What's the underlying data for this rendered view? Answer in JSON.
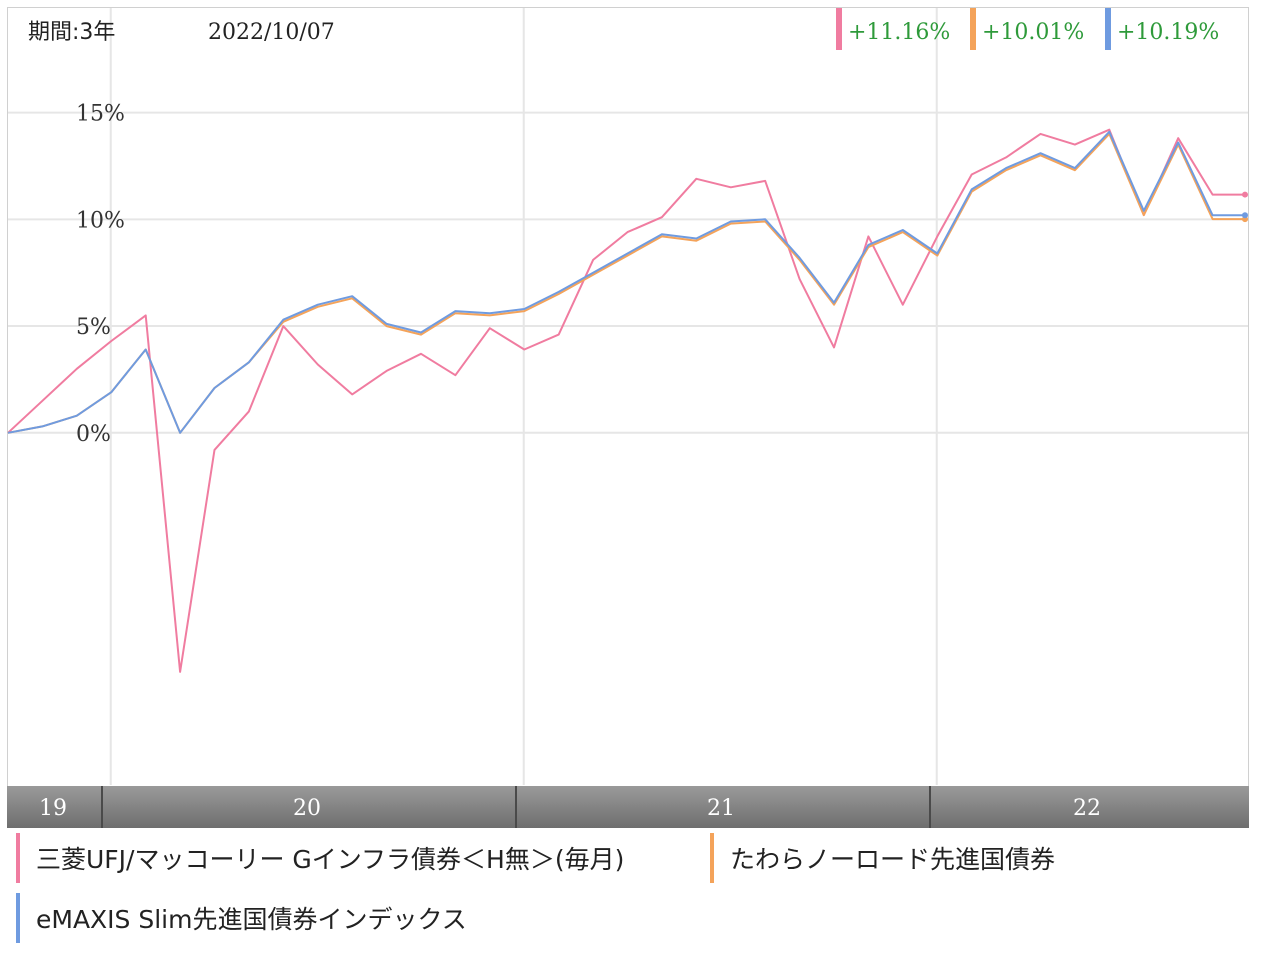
{
  "header": {
    "period_label": "期間:3年",
    "date_label": "2022/10/07"
  },
  "returns": [
    {
      "value": "+11.16%",
      "color": "#f07ca0"
    },
    {
      "value": "+10.01%",
      "color": "#f4a35a"
    },
    {
      "value": "+10.19%",
      "color": "#6f9be0"
    }
  ],
  "x_axis": {
    "labels": [
      "19",
      "20",
      "21",
      "22"
    ]
  },
  "legend": [
    {
      "label": "三菱UFJ/マッコーリー Gインフラ債券＜H無＞(毎月)",
      "color": "#f07ca0"
    },
    {
      "label": "たわらノーロード先進国債券",
      "color": "#f4a35a"
    },
    {
      "label": "eMAXIS Slim先進国債券インデックス",
      "color": "#6f9be0"
    }
  ],
  "chart_data": {
    "type": "line",
    "xlabel": "",
    "ylabel": "",
    "y_ticks": [
      "15%",
      "10%",
      "5%",
      "0%"
    ],
    "y_tick_values": [
      15,
      10,
      5,
      0
    ],
    "ylim": [
      -16.5,
      19.9
    ],
    "x_range": [
      "2019-10",
      "2022-10"
    ],
    "grid": true,
    "x_dates": [
      "2019-10",
      "2019-11",
      "2019-12",
      "2020-01",
      "2020-02",
      "2020-03",
      "2020-04",
      "2020-05",
      "2020-06",
      "2020-07",
      "2020-08",
      "2020-09",
      "2020-10",
      "2020-11",
      "2020-12",
      "2021-01",
      "2021-02",
      "2021-03",
      "2021-04",
      "2021-05",
      "2021-06",
      "2021-07",
      "2021-08",
      "2021-09",
      "2021-10",
      "2021-11",
      "2021-12",
      "2022-01",
      "2022-02",
      "2022-03",
      "2022-04",
      "2022-05",
      "2022-06",
      "2022-07",
      "2022-08",
      "2022-09",
      "2022-10"
    ],
    "series": [
      {
        "name": "三菱UFJ/マッコーリー Gインフラ債券＜H無＞(毎月)",
        "color": "#f07ca0",
        "values": [
          0.0,
          1.5,
          3.0,
          4.3,
          5.5,
          -11.2,
          -0.8,
          1.0,
          5.0,
          3.2,
          1.8,
          2.9,
          3.7,
          2.7,
          4.9,
          3.9,
          4.6,
          8.1,
          9.4,
          10.1,
          11.9,
          11.5,
          11.8,
          7.2,
          4.0,
          9.2,
          6.0,
          9.2,
          12.1,
          12.9,
          14.0,
          13.5,
          14.2,
          10.2,
          13.8,
          11.16,
          11.16
        ]
      },
      {
        "name": "たわらノーロード先進国債券",
        "color": "#f4a35a",
        "values": [
          0.0,
          0.3,
          0.8,
          1.9,
          3.9,
          0.0,
          2.1,
          3.3,
          5.2,
          5.9,
          6.3,
          5.0,
          4.6,
          5.6,
          5.5,
          5.7,
          6.5,
          7.4,
          8.3,
          9.2,
          9.0,
          9.8,
          9.9,
          8.1,
          6.0,
          8.7,
          9.4,
          8.3,
          11.3,
          12.3,
          13.0,
          12.3,
          14.0,
          10.2,
          13.5,
          10.01,
          10.01
        ]
      },
      {
        "name": "eMAXIS Slim先進国債券インデックス",
        "color": "#6f9be0",
        "values": [
          0.0,
          0.3,
          0.8,
          1.9,
          3.9,
          0.0,
          2.1,
          3.3,
          5.3,
          6.0,
          6.4,
          5.1,
          4.7,
          5.7,
          5.6,
          5.8,
          6.6,
          7.5,
          8.4,
          9.3,
          9.1,
          9.9,
          10.0,
          8.2,
          6.1,
          8.8,
          9.5,
          8.4,
          11.4,
          12.4,
          13.1,
          12.4,
          14.1,
          10.4,
          13.6,
          10.19,
          10.19
        ]
      }
    ]
  }
}
